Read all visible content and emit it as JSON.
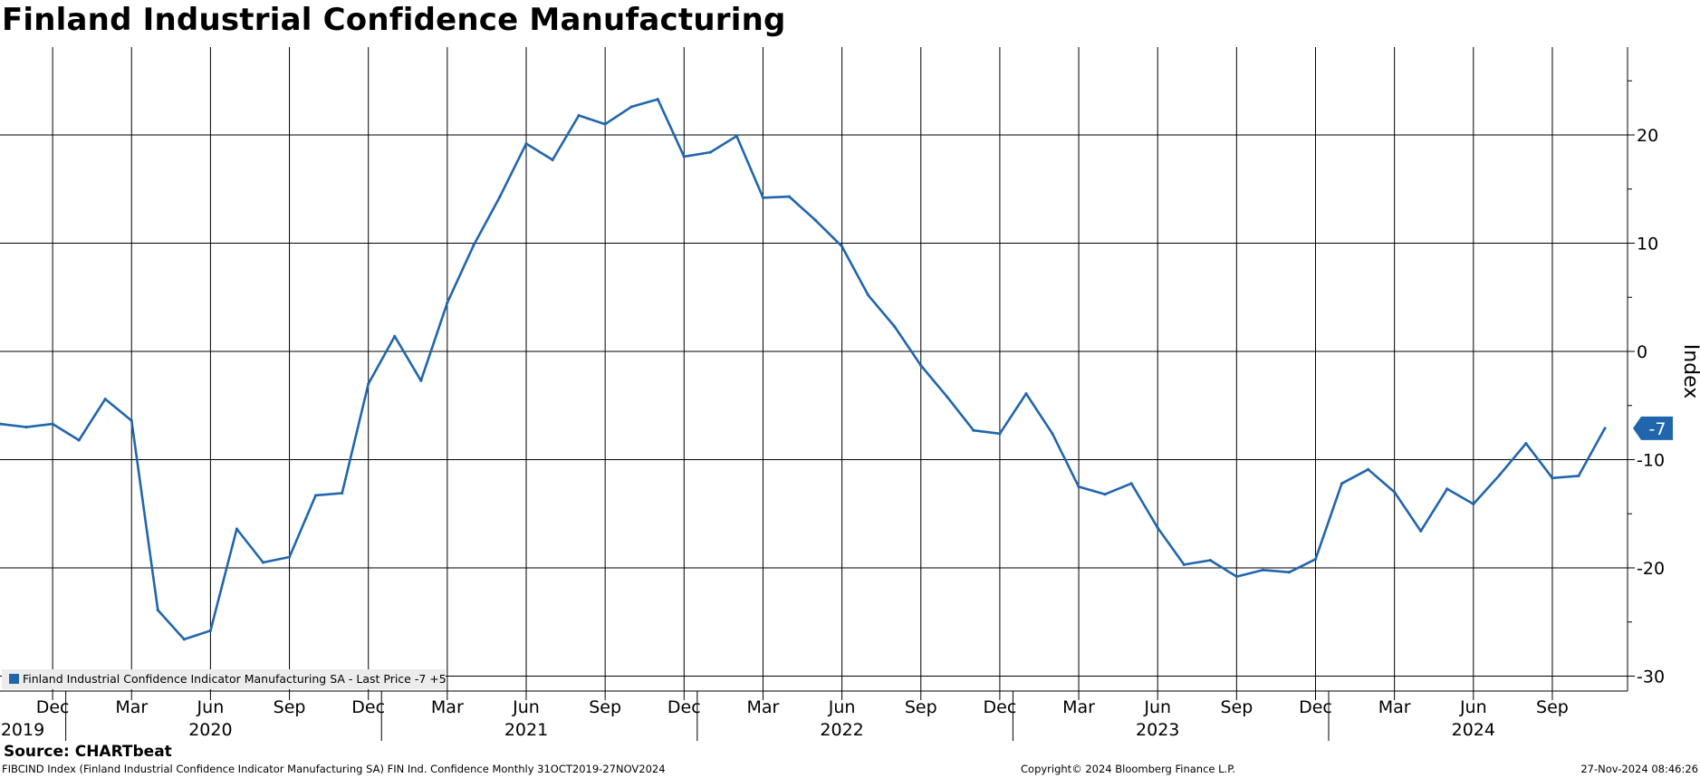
{
  "title": "Finland Industrial Confidence Manufacturing",
  "legend": {
    "text": "Finland Industrial Confidence Indicator Manufacturing SA - Last Price -7 +5"
  },
  "source": "Source: CHARTbeat",
  "footer": {
    "left": "FIBCIND Index (Finland Industrial Confidence Indicator Manufacturing SA) FIN Ind. Confidence  Monthly 31OCT2019-27NOV2024",
    "center": "Copyright© 2024 Bloomberg Finance L.P.",
    "right": "27-Nov-2024 08:46:26"
  },
  "colors": {
    "line": "#2166ac",
    "grid": "#000000",
    "badge": "#2166ac"
  },
  "chart_data": {
    "type": "line",
    "title": "Finland Industrial Confidence Manufacturing",
    "ylabel": "Index",
    "y_axis_position": "right",
    "ylim": [
      -31.5,
      28
    ],
    "yticks": [
      20,
      10,
      0,
      -10,
      -20,
      -30
    ],
    "grid": true,
    "legend_position": "bottom-left",
    "last_value_label": "-7",
    "month_ticks": [
      {
        "date": "2019-12",
        "label": "Dec"
      },
      {
        "date": "2020-03",
        "label": "Mar"
      },
      {
        "date": "2020-06",
        "label": "Jun"
      },
      {
        "date": "2020-09",
        "label": "Sep"
      },
      {
        "date": "2020-12",
        "label": "Dec"
      },
      {
        "date": "2021-03",
        "label": "Mar"
      },
      {
        "date": "2021-06",
        "label": "Jun"
      },
      {
        "date": "2021-09",
        "label": "Sep"
      },
      {
        "date": "2021-12",
        "label": "Dec"
      },
      {
        "date": "2022-03",
        "label": "Mar"
      },
      {
        "date": "2022-06",
        "label": "Jun"
      },
      {
        "date": "2022-09",
        "label": "Sep"
      },
      {
        "date": "2022-12",
        "label": "Dec"
      },
      {
        "date": "2023-03",
        "label": "Mar"
      },
      {
        "date": "2023-06",
        "label": "Jun"
      },
      {
        "date": "2023-09",
        "label": "Sep"
      },
      {
        "date": "2023-12",
        "label": "Dec"
      },
      {
        "date": "2024-03",
        "label": "Mar"
      },
      {
        "date": "2024-06",
        "label": "Jun"
      },
      {
        "date": "2024-09",
        "label": "Sep"
      }
    ],
    "year_labels": [
      {
        "label": "2019",
        "date": "2019-10"
      },
      {
        "label": "2020",
        "date": "2020-06"
      },
      {
        "label": "2021",
        "date": "2021-06"
      },
      {
        "label": "2022",
        "date": "2022-06"
      },
      {
        "label": "2023",
        "date": "2023-06"
      },
      {
        "label": "2024",
        "date": "2024-06"
      }
    ],
    "series": [
      {
        "name": "Finland Industrial Confidence Indicator Manufacturing SA",
        "x": [
          "2019-10",
          "2019-11",
          "2019-12",
          "2020-01",
          "2020-02",
          "2020-03",
          "2020-04",
          "2020-05",
          "2020-06",
          "2020-07",
          "2020-08",
          "2020-09",
          "2020-10",
          "2020-11",
          "2020-12",
          "2021-01",
          "2021-02",
          "2021-03",
          "2021-04",
          "2021-05",
          "2021-06",
          "2021-07",
          "2021-08",
          "2021-09",
          "2021-10",
          "2021-11",
          "2021-12",
          "2022-01",
          "2022-02",
          "2022-03",
          "2022-04",
          "2022-05",
          "2022-06",
          "2022-07",
          "2022-08",
          "2022-09",
          "2022-10",
          "2022-11",
          "2022-12",
          "2023-01",
          "2023-02",
          "2023-03",
          "2023-04",
          "2023-05",
          "2023-06",
          "2023-07",
          "2023-08",
          "2023-09",
          "2023-10",
          "2023-11",
          "2023-12",
          "2024-01",
          "2024-02",
          "2024-03",
          "2024-04",
          "2024-05",
          "2024-06",
          "2024-07",
          "2024-08",
          "2024-09",
          "2024-10",
          "2024-11"
        ],
        "values": [
          -6.7,
          -7.0,
          -6.7,
          -8.2,
          -4.4,
          -6.4,
          -23.9,
          -26.6,
          -25.8,
          -16.4,
          -19.5,
          -19.0,
          -13.3,
          -13.1,
          -3.0,
          1.4,
          -2.7,
          4.5,
          9.8,
          14.3,
          19.2,
          17.7,
          21.8,
          21.0,
          22.6,
          23.3,
          18.0,
          18.4,
          19.9,
          14.2,
          14.3,
          12.1,
          9.7,
          5.2,
          2.3,
          -1.3,
          -4.2,
          -7.3,
          -7.6,
          -3.9,
          -7.6,
          -12.5,
          -13.2,
          -12.2,
          -16.3,
          -19.7,
          -19.3,
          -20.8,
          -20.2,
          -20.4,
          -19.2,
          -12.2,
          -10.9,
          -13.0,
          -16.6,
          -12.7,
          -14.1,
          -11.4,
          -8.5,
          -11.7,
          -11.5,
          -7.1
        ]
      }
    ]
  }
}
